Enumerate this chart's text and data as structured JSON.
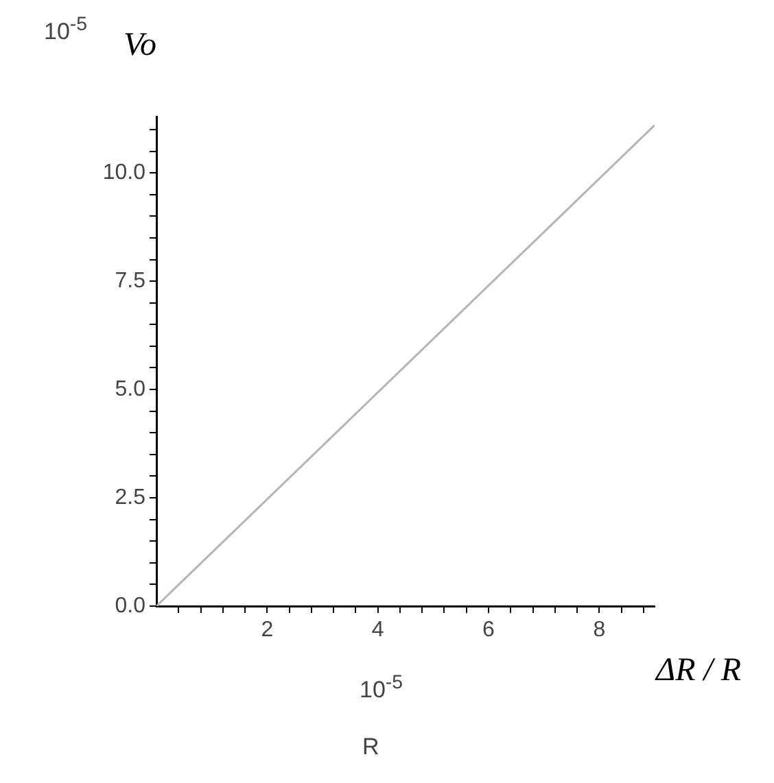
{
  "chart_data": {
    "type": "line",
    "ylabel": "Vo",
    "xlabel": "ΔR / R",
    "annotations": [
      "10$^{-5}$",
      "10$^{-5}$",
      "R"
    ],
    "x": [
      0,
      9
    ],
    "series": [
      {
        "color": "#b4b4b4",
        "values": [
          0,
          11.1
        ]
      }
    ],
    "xlim": [
      0,
      9
    ],
    "ylim": [
      0,
      11.3
    ],
    "xticks": [
      {
        "value": 0.4,
        "label": null
      },
      {
        "value": 0.8,
        "label": null
      },
      {
        "value": 1.2,
        "label": null
      },
      {
        "value": 1.6,
        "label": null
      },
      2,
      {
        "value": 2.4,
        "label": null
      },
      {
        "value": 2.8,
        "label": null
      },
      {
        "value": 3.2,
        "label": null
      },
      {
        "value": 3.6,
        "label": null
      },
      4,
      {
        "value": 4.4,
        "label": null
      },
      {
        "value": 4.8,
        "label": null
      },
      {
        "value": 5.2,
        "label": null
      },
      {
        "value": 5.6,
        "label": null
      },
      6,
      {
        "value": 6.4,
        "label": null
      },
      {
        "value": 6.8,
        "label": null
      },
      {
        "value": 7.2,
        "label": null
      },
      {
        "value": 7.6,
        "label": null
      },
      8,
      {
        "value": 8.4,
        "label": null
      },
      {
        "value": 8.8,
        "label": null
      }
    ],
    "yticks": [
      {
        "value": 0,
        "label": "0.0"
      },
      {
        "value": 0.5,
        "label": null
      },
      {
        "value": 1,
        "label": null
      },
      {
        "value": 1.5,
        "label": null
      },
      {
        "value": 2,
        "label": null
      },
      2.5,
      {
        "value": 3,
        "label": null
      },
      {
        "value": 3.5,
        "label": null
      },
      {
        "value": 4,
        "label": null
      },
      {
        "value": 4.5,
        "label": null
      },
      {
        "value": 5,
        "label": "5.0"
      },
      {
        "value": 5.5,
        "label": null
      },
      {
        "value": 6,
        "label": null
      },
      {
        "value": 6.5,
        "label": null
      },
      {
        "value": 7,
        "label": null
      },
      7.5,
      {
        "value": 8,
        "label": null
      },
      {
        "value": 8.5,
        "label": null
      },
      {
        "value": 9,
        "label": null
      },
      {
        "value": 9.5,
        "label": null
      },
      {
        "value": 10,
        "label": "10.0"
      },
      {
        "value": 10.5,
        "label": null
      },
      {
        "value": 11,
        "label": null
      }
    ],
    "grid": false,
    "legend": false
  }
}
